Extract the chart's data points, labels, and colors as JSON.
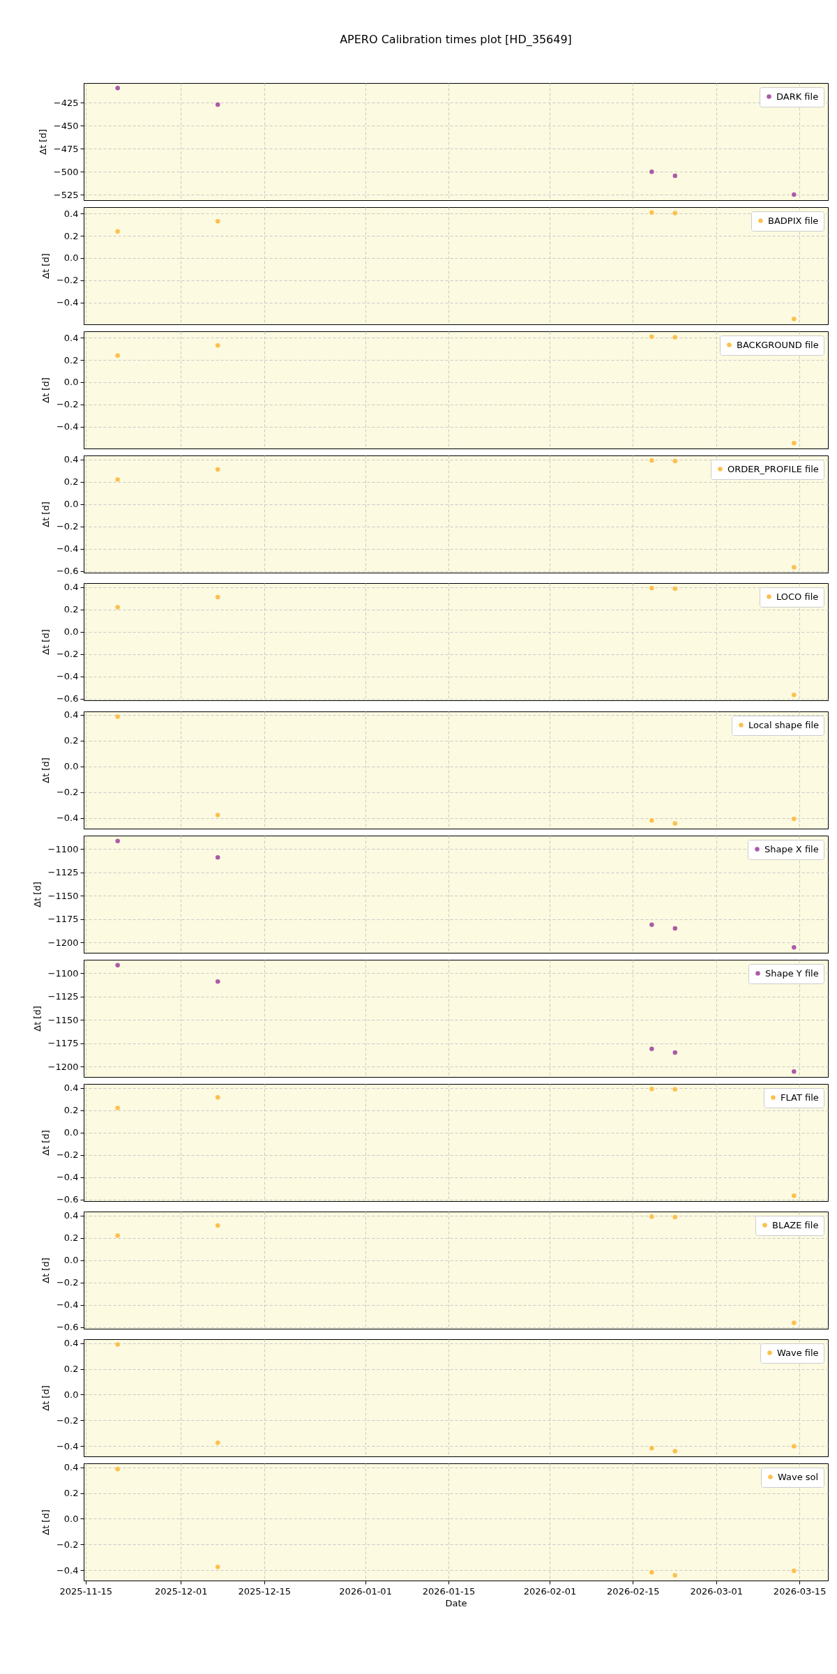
{
  "chart_data": [
    {
      "type": "scatter",
      "title": "APERO Calibration times plot [HD_35649]",
      "ylabel": "Δt [d]",
      "x": [
        "2025-11-20T09:00",
        "2025-12-07T05:00",
        "2026-02-18T04:00",
        "2026-02-22T02:00",
        "2026-03-14T02:00"
      ],
      "xlim": [
        "2025-11-14T16:00",
        "2026-03-19T19:00"
      ],
      "xticks": [
        "2025-11-15",
        "2025-12-01",
        "2025-12-15",
        "2026-01-01",
        "2026-01-15",
        "2026-02-01",
        "2026-02-15",
        "2026-03-01",
        "2026-03-15"
      ],
      "ylim": [
        -531,
        -403.5
      ],
      "yticks": [
        {
          "value": -425,
          "label": "−425"
        },
        {
          "value": -450,
          "label": "−450"
        },
        {
          "value": -475,
          "label": "−475"
        },
        {
          "value": -500,
          "label": "−500"
        },
        {
          "value": -525,
          "label": "−525"
        }
      ],
      "series": [
        {
          "name": "DARK file",
          "color": "#ac5aa8",
          "values": [
            -409,
            -427,
            -500,
            -504.5,
            -525
          ]
        }
      ],
      "grid": true,
      "legend": "top right",
      "marker": "circle",
      "tick_labels": "y"
    },
    {
      "type": "scatter",
      "ylabel": "Δt [d]",
      "x": [
        "2025-11-20T09:00",
        "2025-12-07T05:00",
        "2026-02-18T04:00",
        "2026-02-22T02:00",
        "2026-03-14T02:00"
      ],
      "xlim": [
        "2025-11-14T16:00",
        "2026-03-19T19:00"
      ],
      "xticks": [
        "2025-11-15",
        "2025-12-01",
        "2025-12-15",
        "2026-01-01",
        "2026-01-15",
        "2026-02-01",
        "2026-02-15",
        "2026-03-01",
        "2026-03-15"
      ],
      "ylim": [
        -0.598,
        0.458
      ],
      "yticks": [
        {
          "value": 0.4,
          "label": "0.4"
        },
        {
          "value": 0.2,
          "label": "0.2"
        },
        {
          "value": 0,
          "label": "0.0"
        },
        {
          "value": -0.2,
          "label": "−0.2"
        },
        {
          "value": -0.4,
          "label": "−0.4"
        }
      ],
      "series": [
        {
          "name": "BADPIX file",
          "color": "#fcc04f",
          "values": [
            0.24,
            0.33,
            0.41,
            0.405,
            -0.55
          ]
        }
      ],
      "grid": true,
      "legend": "top right",
      "marker": "circle",
      "tick_labels": "y"
    },
    {
      "type": "scatter",
      "ylabel": "Δt [d]",
      "x": [
        "2025-11-20T09:00",
        "2025-12-07T05:00",
        "2026-02-18T04:00",
        "2026-02-22T02:00",
        "2026-03-14T02:00"
      ],
      "xlim": [
        "2025-11-14T16:00",
        "2026-03-19T19:00"
      ],
      "xticks": [
        "2025-11-15",
        "2025-12-01",
        "2025-12-15",
        "2026-01-01",
        "2026-01-15",
        "2026-02-01",
        "2026-02-15",
        "2026-03-01",
        "2026-03-15"
      ],
      "ylim": [
        -0.598,
        0.458
      ],
      "yticks": [
        {
          "value": 0.4,
          "label": "0.4"
        },
        {
          "value": 0.2,
          "label": "0.2"
        },
        {
          "value": 0,
          "label": "0.0"
        },
        {
          "value": -0.2,
          "label": "−0.2"
        },
        {
          "value": -0.4,
          "label": "−0.4"
        }
      ],
      "series": [
        {
          "name": "BACKGROUND file",
          "color": "#fcc04f",
          "values": [
            0.24,
            0.33,
            0.41,
            0.405,
            -0.55
          ]
        }
      ],
      "grid": true,
      "legend": "top right",
      "marker": "circle",
      "tick_labels": "y"
    },
    {
      "type": "scatter",
      "ylabel": "Δt [d]",
      "x": [
        "2025-11-20T09:00",
        "2025-12-07T05:00",
        "2026-02-18T04:00",
        "2026-02-22T02:00",
        "2026-03-14T02:00"
      ],
      "xlim": [
        "2025-11-14T16:00",
        "2026-03-19T19:00"
      ],
      "xticks": [
        "2025-11-15",
        "2025-12-01",
        "2025-12-15",
        "2026-01-01",
        "2026-01-15",
        "2026-02-01",
        "2026-02-15",
        "2026-03-01",
        "2026-03-15"
      ],
      "ylim": [
        -0.613,
        0.435
      ],
      "yticks": [
        {
          "value": 0.4,
          "label": "0.4"
        },
        {
          "value": 0.2,
          "label": "0.2"
        },
        {
          "value": 0,
          "label": "0.0"
        },
        {
          "value": -0.2,
          "label": "−0.2"
        },
        {
          "value": -0.4,
          "label": "−0.4"
        },
        {
          "value": -0.6,
          "label": "−0.6"
        }
      ],
      "series": [
        {
          "name": "ORDER_PROFILE file",
          "color": "#fcc04f",
          "values": [
            0.22,
            0.31,
            0.39,
            0.385,
            -0.565
          ]
        }
      ],
      "grid": true,
      "legend": "top right",
      "marker": "circle",
      "tick_labels": "y"
    },
    {
      "type": "scatter",
      "ylabel": "Δt [d]",
      "x": [
        "2025-11-20T09:00",
        "2025-12-07T05:00",
        "2026-02-18T04:00",
        "2026-02-22T02:00",
        "2026-03-14T02:00"
      ],
      "xlim": [
        "2025-11-14T16:00",
        "2026-03-19T19:00"
      ],
      "xticks": [
        "2025-11-15",
        "2025-12-01",
        "2025-12-15",
        "2026-01-01",
        "2026-01-15",
        "2026-02-01",
        "2026-02-15",
        "2026-03-01",
        "2026-03-15"
      ],
      "ylim": [
        -0.613,
        0.435
      ],
      "yticks": [
        {
          "value": 0.4,
          "label": "0.4"
        },
        {
          "value": 0.2,
          "label": "0.2"
        },
        {
          "value": 0,
          "label": "0.0"
        },
        {
          "value": -0.2,
          "label": "−0.2"
        },
        {
          "value": -0.4,
          "label": "−0.4"
        },
        {
          "value": -0.6,
          "label": "−0.6"
        }
      ],
      "series": [
        {
          "name": "LOCO file",
          "color": "#fcc04f",
          "values": [
            0.22,
            0.31,
            0.39,
            0.385,
            -0.565
          ]
        }
      ],
      "grid": true,
      "legend": "top right",
      "marker": "circle",
      "tick_labels": "y"
    },
    {
      "type": "scatter",
      "ylabel": "Δt [d]",
      "x": [
        "2025-11-20T09:00",
        "2025-12-07T05:00",
        "2026-02-18T04:00",
        "2026-02-22T02:00",
        "2026-03-14T02:00"
      ],
      "xlim": [
        "2025-11-14T16:00",
        "2026-03-19T19:00"
      ],
      "xticks": [
        "2025-11-15",
        "2025-12-01",
        "2025-12-15",
        "2026-01-01",
        "2026-01-15",
        "2026-02-01",
        "2026-02-15",
        "2026-03-01",
        "2026-03-15"
      ],
      "ylim": [
        -0.483,
        0.426
      ],
      "yticks": [
        {
          "value": 0.4,
          "label": "0.4"
        },
        {
          "value": 0.2,
          "label": "0.2"
        },
        {
          "value": 0,
          "label": "0.0"
        },
        {
          "value": -0.2,
          "label": "−0.2"
        },
        {
          "value": -0.4,
          "label": "−0.4"
        }
      ],
      "series": [
        {
          "name": "Local shape file",
          "color": "#fcc04f",
          "values": [
            0.385,
            -0.377,
            -0.419,
            -0.442,
            -0.407
          ]
        }
      ],
      "grid": true,
      "legend": "top right",
      "marker": "circle",
      "tick_labels": "y"
    },
    {
      "type": "scatter",
      "ylabel": "Δt [d]",
      "x": [
        "2025-11-20T09:00",
        "2025-12-07T05:00",
        "2026-02-18T04:00",
        "2026-02-22T02:00",
        "2026-03-14T02:00"
      ],
      "xlim": [
        "2025-11-14T16:00",
        "2026-03-19T19:00"
      ],
      "xticks": [
        "2025-11-15",
        "2025-12-01",
        "2025-12-15",
        "2026-01-01",
        "2026-01-15",
        "2026-02-01",
        "2026-02-15",
        "2026-03-01",
        "2026-03-15"
      ],
      "ylim": [
        -1211,
        -1085.8
      ],
      "yticks": [
        {
          "value": -1100,
          "label": "−1100"
        },
        {
          "value": -1125,
          "label": "−1125"
        },
        {
          "value": -1150,
          "label": "−1150"
        },
        {
          "value": -1175,
          "label": "−1175"
        },
        {
          "value": -1200,
          "label": "−1200"
        }
      ],
      "series": [
        {
          "name": "Shape X file",
          "color": "#ac5aa8",
          "values": [
            -1091.5,
            -1109,
            -1181,
            -1185,
            -1205.3
          ]
        }
      ],
      "grid": true,
      "legend": "top right",
      "marker": "circle",
      "tick_labels": "y"
    },
    {
      "type": "scatter",
      "ylabel": "Δt [d]",
      "x": [
        "2025-11-20T09:00",
        "2025-12-07T05:00",
        "2026-02-18T04:00",
        "2026-02-22T02:00",
        "2026-03-14T02:00"
      ],
      "xlim": [
        "2025-11-14T16:00",
        "2026-03-19T19:00"
      ],
      "xticks": [
        "2025-11-15",
        "2025-12-01",
        "2025-12-15",
        "2026-01-01",
        "2026-01-15",
        "2026-02-01",
        "2026-02-15",
        "2026-03-01",
        "2026-03-15"
      ],
      "ylim": [
        -1211,
        -1085.8
      ],
      "yticks": [
        {
          "value": -1100,
          "label": "−1100"
        },
        {
          "value": -1125,
          "label": "−1125"
        },
        {
          "value": -1150,
          "label": "−1150"
        },
        {
          "value": -1175,
          "label": "−1175"
        },
        {
          "value": -1200,
          "label": "−1200"
        }
      ],
      "series": [
        {
          "name": "Shape Y file",
          "color": "#ac5aa8",
          "values": [
            -1091.5,
            -1109,
            -1181,
            -1185,
            -1205.3
          ]
        }
      ],
      "grid": true,
      "legend": "top right",
      "marker": "circle",
      "tick_labels": "y"
    },
    {
      "type": "scatter",
      "ylabel": "Δt [d]",
      "x": [
        "2025-11-20T09:00",
        "2025-12-07T05:00",
        "2026-02-18T04:00",
        "2026-02-22T02:00",
        "2026-03-14T02:00"
      ],
      "xlim": [
        "2025-11-14T16:00",
        "2026-03-19T19:00"
      ],
      "xticks": [
        "2025-11-15",
        "2025-12-01",
        "2025-12-15",
        "2026-01-01",
        "2026-01-15",
        "2026-02-01",
        "2026-02-15",
        "2026-03-01",
        "2026-03-15"
      ],
      "ylim": [
        -0.613,
        0.435
      ],
      "yticks": [
        {
          "value": 0.4,
          "label": "0.4"
        },
        {
          "value": 0.2,
          "label": "0.2"
        },
        {
          "value": 0,
          "label": "0.0"
        },
        {
          "value": -0.2,
          "label": "−0.2"
        },
        {
          "value": -0.4,
          "label": "−0.4"
        },
        {
          "value": -0.6,
          "label": "−0.6"
        }
      ],
      "series": [
        {
          "name": "FLAT file",
          "color": "#fcc04f",
          "values": [
            0.22,
            0.315,
            0.39,
            0.387,
            -0.565
          ]
        }
      ],
      "grid": true,
      "legend": "top right",
      "marker": "circle",
      "tick_labels": "y"
    },
    {
      "type": "scatter",
      "ylabel": "Δt [d]",
      "x": [
        "2025-11-20T09:00",
        "2025-12-07T05:00",
        "2026-02-18T04:00",
        "2026-02-22T02:00",
        "2026-03-14T02:00"
      ],
      "xlim": [
        "2025-11-14T16:00",
        "2026-03-19T19:00"
      ],
      "xticks": [
        "2025-11-15",
        "2025-12-01",
        "2025-12-15",
        "2026-01-01",
        "2026-01-15",
        "2026-02-01",
        "2026-02-15",
        "2026-03-01",
        "2026-03-15"
      ],
      "ylim": [
        -0.613,
        0.435
      ],
      "yticks": [
        {
          "value": 0.4,
          "label": "0.4"
        },
        {
          "value": 0.2,
          "label": "0.2"
        },
        {
          "value": 0,
          "label": "0.0"
        },
        {
          "value": -0.2,
          "label": "−0.2"
        },
        {
          "value": -0.4,
          "label": "−0.4"
        },
        {
          "value": -0.6,
          "label": "−0.6"
        }
      ],
      "series": [
        {
          "name": "BLAZE file",
          "color": "#fcc04f",
          "values": [
            0.22,
            0.31,
            0.39,
            0.385,
            -0.56
          ]
        }
      ],
      "grid": true,
      "legend": "top right",
      "marker": "circle",
      "tick_labels": "y"
    },
    {
      "type": "scatter",
      "ylabel": "Δt [d]",
      "x": [
        "2025-11-20T09:00",
        "2025-12-07T05:00",
        "2026-02-18T04:00",
        "2026-02-22T02:00",
        "2026-03-14T02:00"
      ],
      "xlim": [
        "2025-11-14T16:00",
        "2026-03-19T19:00"
      ],
      "xticks": [
        "2025-11-15",
        "2025-12-01",
        "2025-12-15",
        "2026-01-01",
        "2026-01-15",
        "2026-02-01",
        "2026-02-15",
        "2026-03-01",
        "2026-03-15"
      ],
      "ylim": [
        -0.479,
        0.43
      ],
      "yticks": [
        {
          "value": 0.4,
          "label": "0.4"
        },
        {
          "value": 0.2,
          "label": "0.2"
        },
        {
          "value": 0,
          "label": "0.0"
        },
        {
          "value": -0.2,
          "label": "−0.2"
        },
        {
          "value": -0.4,
          "label": "−0.4"
        }
      ],
      "series": [
        {
          "name": "Wave file",
          "color": "#fcc04f",
          "values": [
            0.389,
            -0.373,
            -0.415,
            -0.438,
            -0.4
          ]
        }
      ],
      "grid": true,
      "legend": "top right",
      "marker": "circle",
      "tick_labels": "y"
    },
    {
      "type": "scatter",
      "ylabel": "Δt [d]",
      "xlabel": "Date",
      "x": [
        "2025-11-20T09:00",
        "2025-12-07T05:00",
        "2026-02-18T04:00",
        "2026-02-22T02:00",
        "2026-03-14T02:00"
      ],
      "xlim": [
        "2025-11-14T16:00",
        "2026-03-19T19:00"
      ],
      "xticks": [
        "2025-11-15",
        "2025-12-01",
        "2025-12-15",
        "2026-01-01",
        "2026-01-15",
        "2026-02-01",
        "2026-02-15",
        "2026-03-01",
        "2026-03-15"
      ],
      "ylim": [
        -0.479,
        0.43
      ],
      "yticks": [
        {
          "value": 0.4,
          "label": "0.4"
        },
        {
          "value": 0.2,
          "label": "0.2"
        },
        {
          "value": 0,
          "label": "0.0"
        },
        {
          "value": -0.2,
          "label": "−0.2"
        },
        {
          "value": -0.4,
          "label": "−0.4"
        }
      ],
      "series": [
        {
          "name": "Wave sol",
          "color": "#fcc04f",
          "values": [
            0.385,
            -0.373,
            -0.415,
            -0.438,
            -0.403
          ]
        }
      ],
      "grid": true,
      "legend": "top right",
      "marker": "circle"
    }
  ]
}
